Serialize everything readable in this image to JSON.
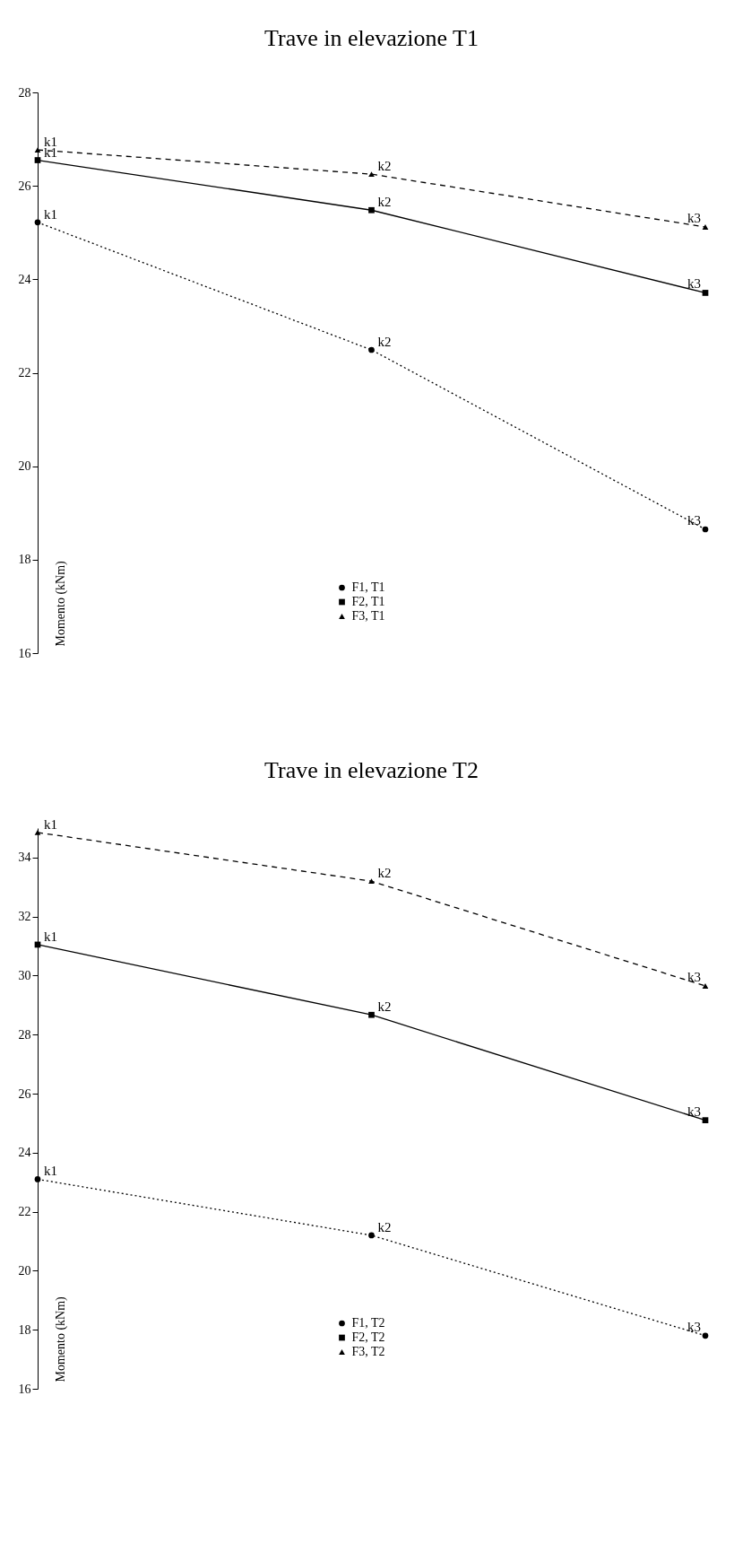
{
  "chart_data": [
    {
      "type": "line",
      "title": "Trave in elevazione T1",
      "ylabel": "Momento (kNm)",
      "categories": [
        "k1",
        "k2",
        "k3"
      ],
      "ylim": [
        16,
        28
      ],
      "yticks": [
        16,
        18,
        20,
        22,
        24,
        26,
        28
      ],
      "grid": false,
      "legend": "bottom",
      "tick_labels": "y",
      "series": [
        {
          "name": "F1, T1",
          "color": "#000000",
          "marker": "circle",
          "line_style": "dotted",
          "values": [
            25.22,
            22.49,
            18.65
          ]
        },
        {
          "name": "F2, T1",
          "color": "#000000",
          "marker": "square",
          "line_style": "solid",
          "values": [
            26.55,
            25.48,
            23.71
          ]
        },
        {
          "name": "F3, T1",
          "color": "#000000",
          "marker": "triangle",
          "line_style": "dashed",
          "values": [
            26.77,
            26.25,
            25.12
          ]
        }
      ]
    },
    {
      "type": "line",
      "title": "Trave in elevazione T2",
      "ylabel": "Momento (kNm)",
      "categories": [
        "k1",
        "k2",
        "k3"
      ],
      "ylim": [
        16,
        35
      ],
      "yticks": [
        16,
        18,
        20,
        22,
        24,
        26,
        28,
        30,
        32,
        34
      ],
      "grid": false,
      "legend": "bottom",
      "tick_labels": "y",
      "series": [
        {
          "name": "F1, T2",
          "color": "#000000",
          "marker": "circle",
          "line_style": "dotted",
          "values": [
            23.1,
            21.2,
            17.8
          ]
        },
        {
          "name": "F2, T2",
          "color": "#000000",
          "marker": "square",
          "line_style": "solid",
          "values": [
            31.05,
            28.67,
            25.1
          ]
        },
        {
          "name": "F3, T2",
          "color": "#000000",
          "marker": "triangle",
          "line_style": "dashed",
          "values": [
            34.85,
            33.2,
            29.65
          ]
        }
      ]
    }
  ]
}
